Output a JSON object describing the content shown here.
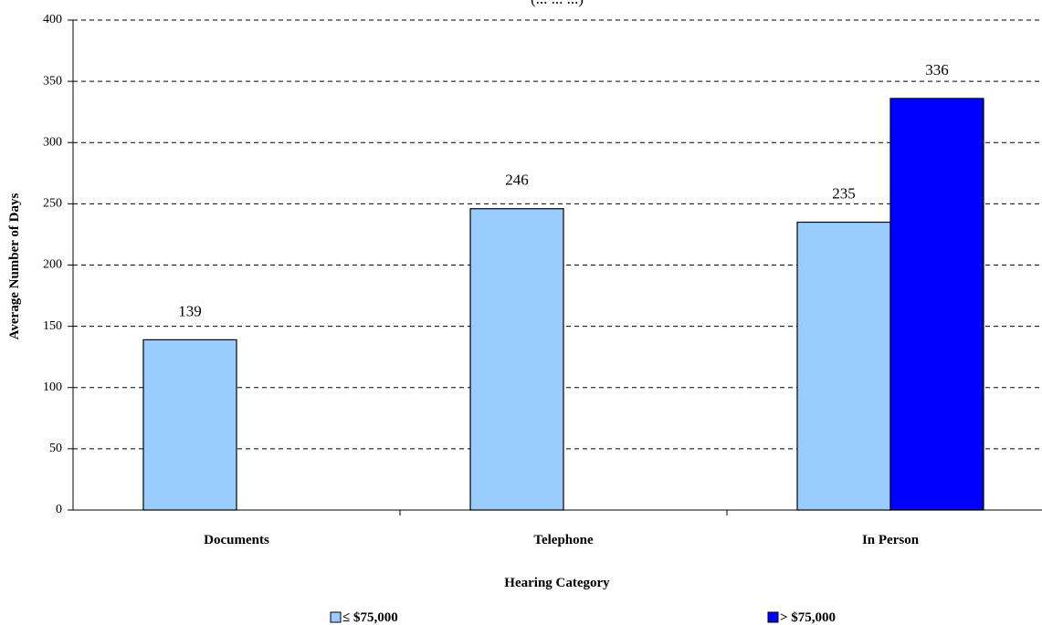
{
  "chart_data": {
    "type": "bar",
    "title": "(... ... ...)",
    "xlabel": "Hearing Category",
    "ylabel": "Average Number of Days",
    "categories": [
      "Documents",
      "Telephone",
      "In Person"
    ],
    "series": [
      {
        "name": "≤ $75,000",
        "values": [
          139,
          246,
          235
        ],
        "color": "#99ccff"
      },
      {
        "name": "> $75,000",
        "values": [
          null,
          null,
          336
        ],
        "color": "#0000ff"
      }
    ],
    "ylim": [
      0,
      400
    ],
    "yticks": [
      0,
      50,
      100,
      150,
      200,
      250,
      300,
      350,
      400
    ],
    "grid": true,
    "legend": "bottom",
    "data_labels": true
  }
}
